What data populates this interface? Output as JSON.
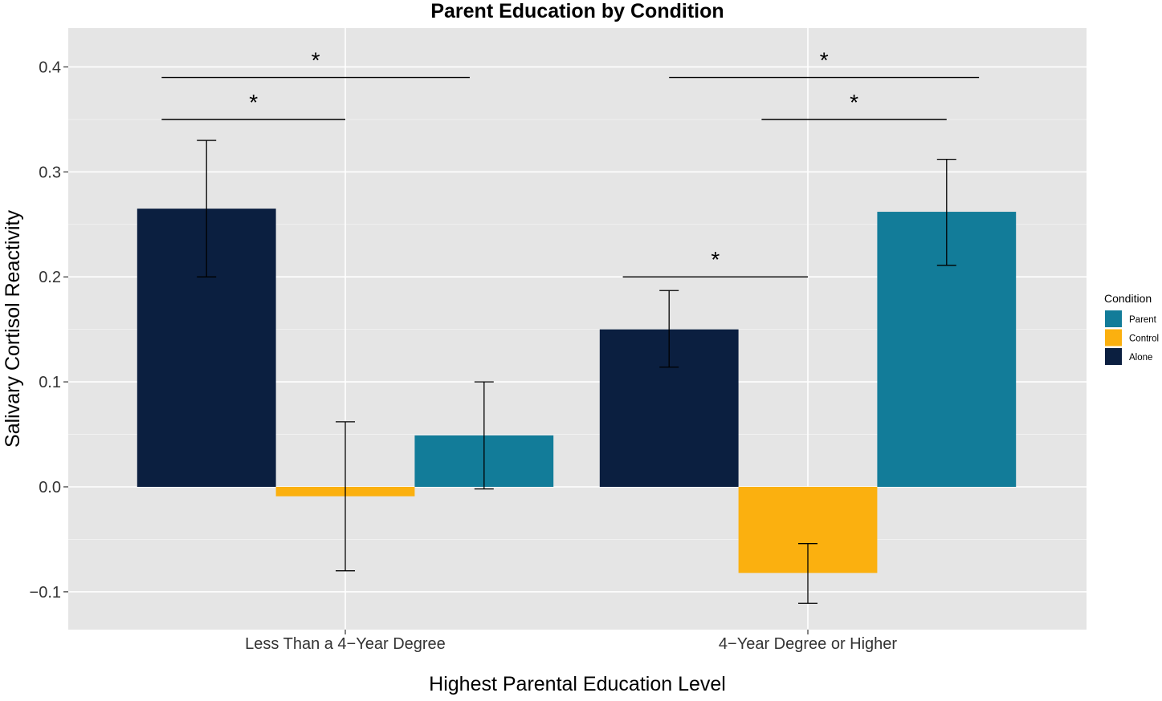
{
  "chart_data": {
    "type": "bar",
    "title": "Parent Education by Condition",
    "xlabel": "Highest Parental Education Level",
    "ylabel": "Salivary Cortisol Reactivity",
    "categories": [
      "Less Than a 4−Year Degree",
      "4−Year Degree or Higher"
    ],
    "ylim": [
      -0.136,
      0.437
    ],
    "yticks": [
      -0.1,
      0.0,
      0.1,
      0.2,
      0.3,
      0.4
    ],
    "ytick_labels": [
      "−0.1",
      "0.0",
      "0.1",
      "0.2",
      "0.3",
      "0.4"
    ],
    "grid": true,
    "series": [
      {
        "name": "Alone",
        "color": "#0b1f40",
        "values": [
          0.265,
          0.15
        ],
        "err_low": [
          0.2,
          0.114
        ],
        "err_high": [
          0.33,
          0.187
        ]
      },
      {
        "name": "Control",
        "color": "#fbb00f",
        "values": [
          -0.009,
          -0.082
        ],
        "err_low": [
          -0.08,
          -0.111
        ],
        "err_high": [
          0.062,
          -0.054
        ]
      },
      {
        "name": "Parent",
        "color": "#127c99",
        "values": [
          0.049,
          0.262
        ],
        "err_low": [
          -0.002,
          0.211
        ],
        "err_high": [
          0.1,
          0.312
        ]
      }
    ],
    "legend": {
      "title": "Condition",
      "placement": "right",
      "order": [
        "Parent",
        "Control",
        "Alone"
      ]
    },
    "annotations": [
      {
        "text": "*",
        "x_from": 0.603,
        "x_to": 1.269,
        "y": 0.39
      },
      {
        "text": "*",
        "x_from": 0.603,
        "x_to": 1.0,
        "y": 0.35
      },
      {
        "text": "*",
        "x_from": 1.7,
        "x_to": 2.37,
        "y": 0.39
      },
      {
        "text": "*",
        "x_from": 1.9,
        "x_to": 2.3,
        "y": 0.35
      },
      {
        "text": "*",
        "x_from": 1.6,
        "x_to": 2.0,
        "y": 0.2
      }
    ]
  }
}
